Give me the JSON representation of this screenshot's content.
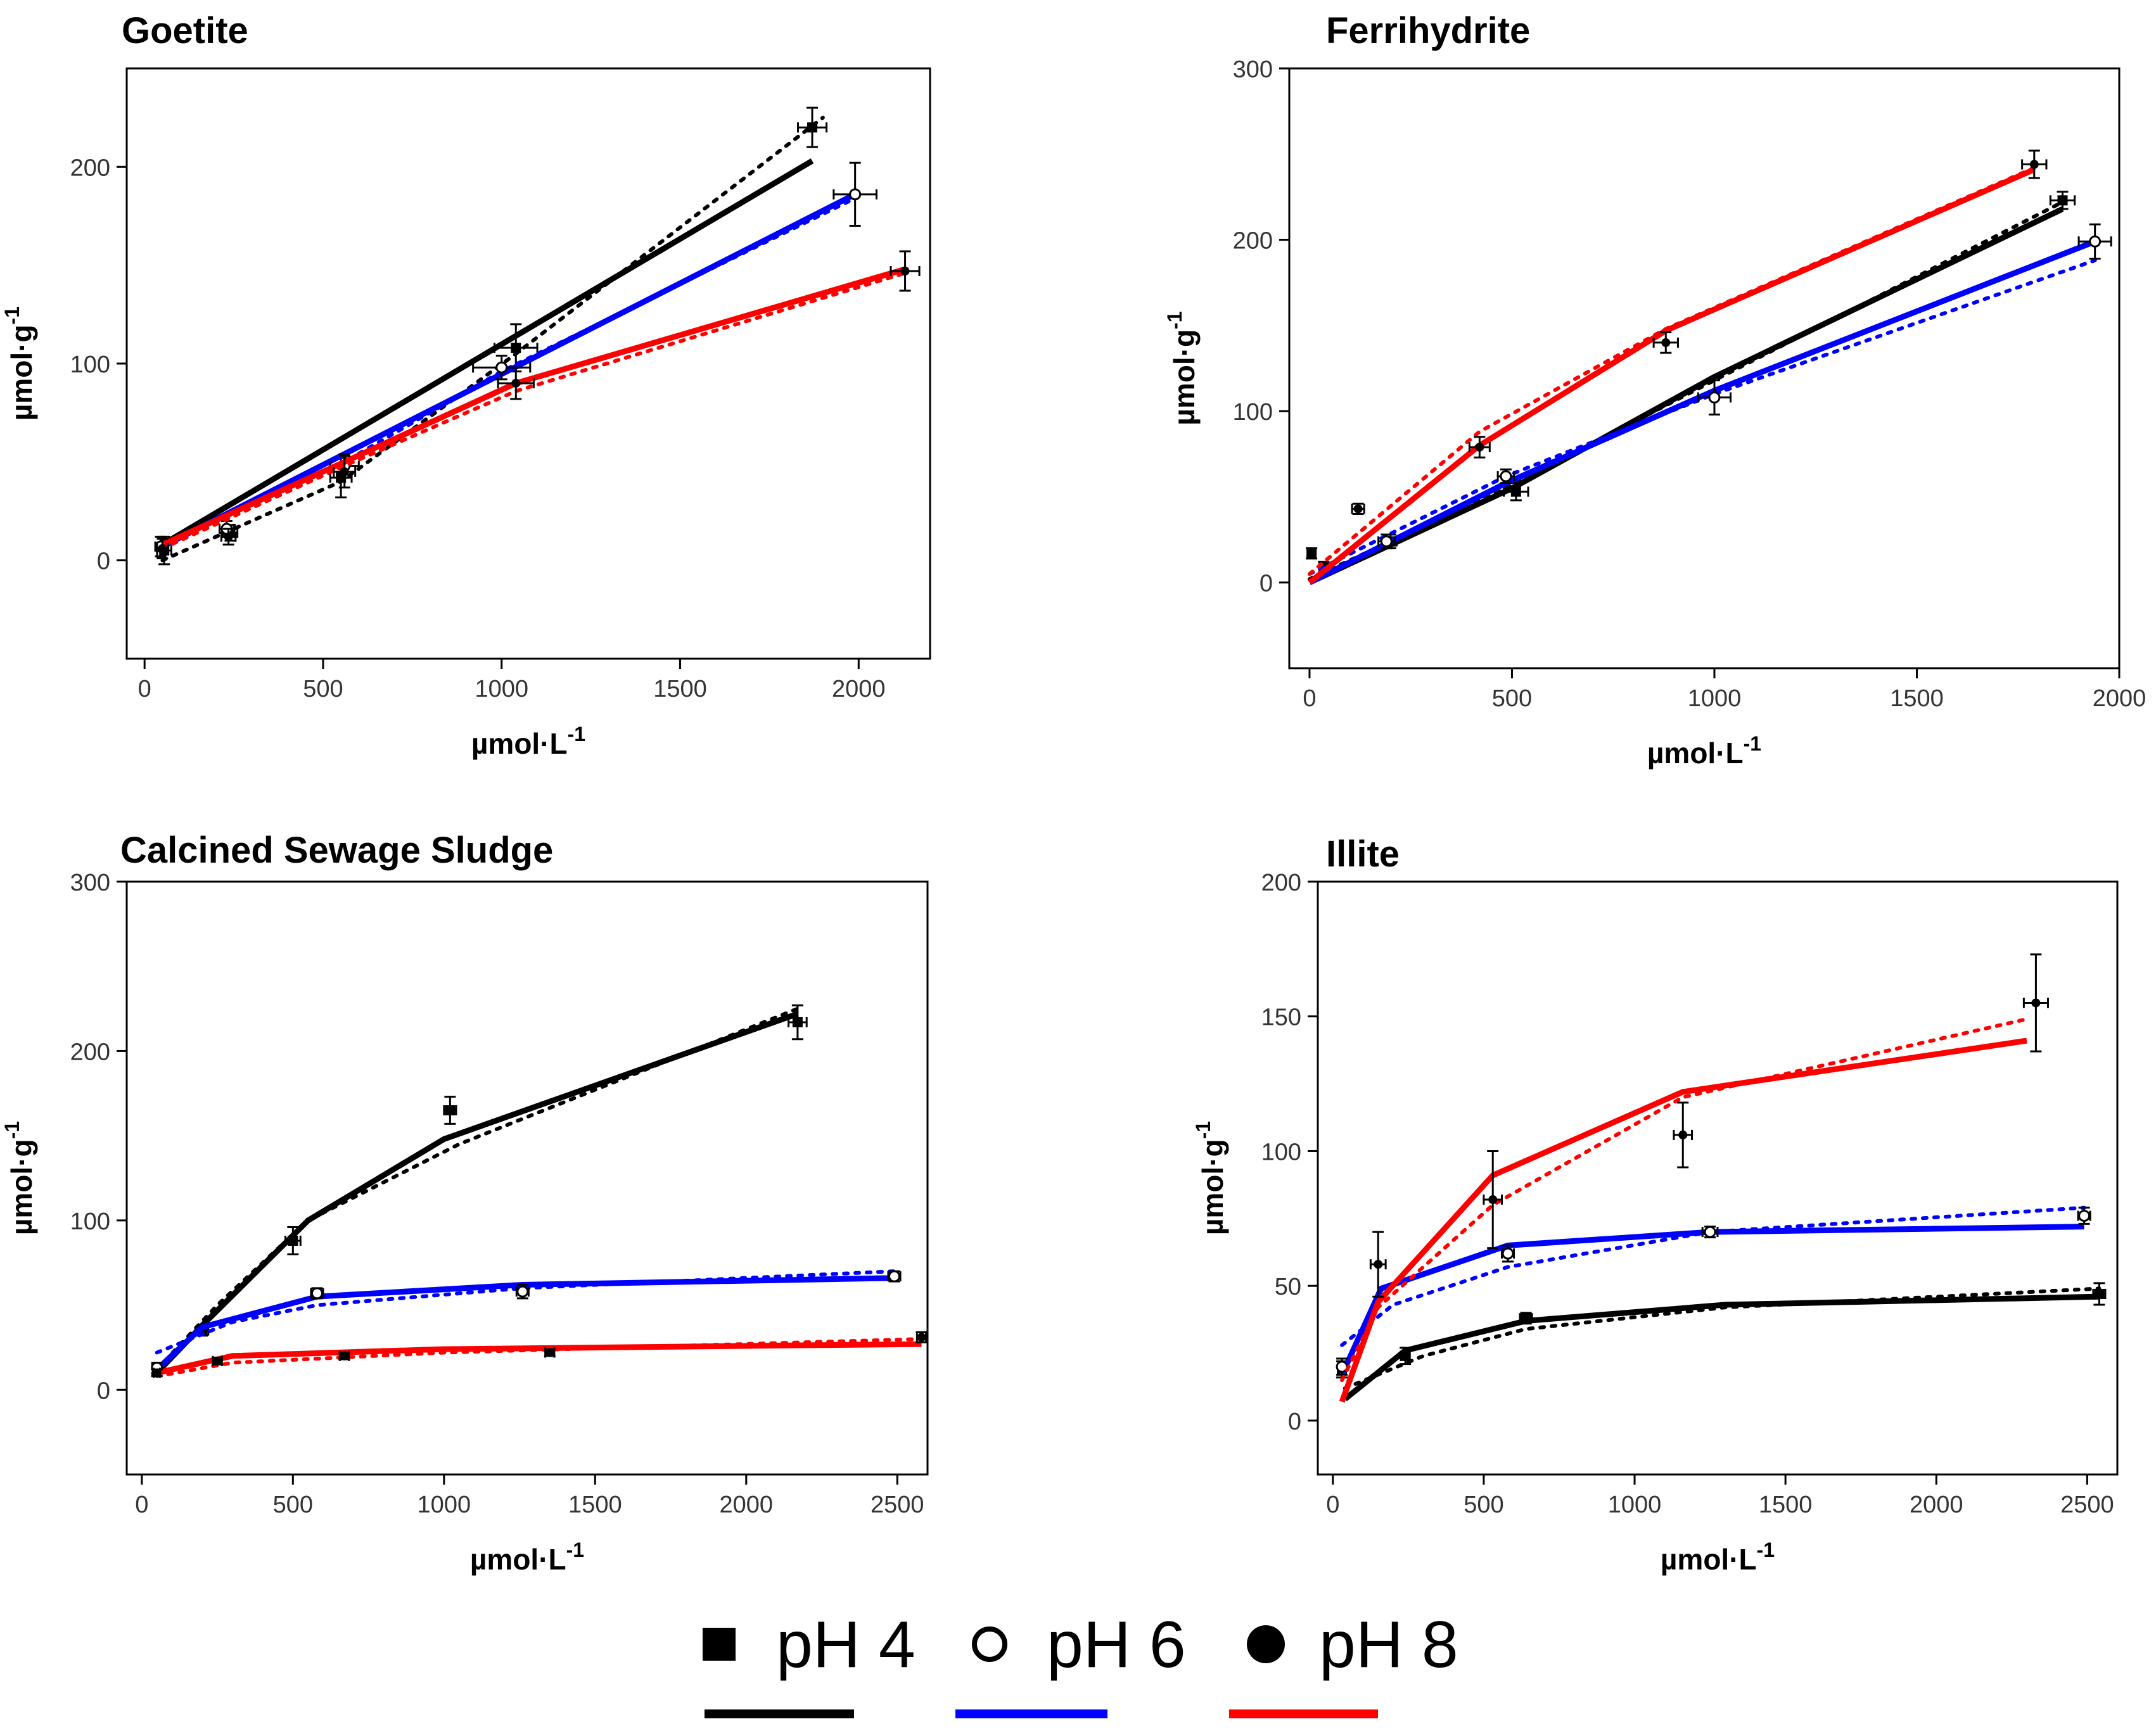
{
  "chart_data": [
    {
      "type": "line",
      "title": "Goetite",
      "xlabel": "µmol·L",
      "xlabel_sup": "-1",
      "ylabel": "µmol·g",
      "ylabel_sup": "-1",
      "xlim": [
        -50,
        2200
      ],
      "ylim": [
        -50,
        250
      ],
      "xticks": [
        0,
        500,
        1000,
        1500,
        2000
      ],
      "yticks": [
        0,
        100,
        200
      ],
      "series": [
        {
          "name": "pH 4",
          "color": "#000000",
          "marker": "square",
          "points": [
            {
              "x": 55,
              "y": 5,
              "ex": 20,
              "ey": 7
            },
            {
              "x": 240,
              "y": 14,
              "ex": 20,
              "ey": 4
            },
            {
              "x": 550,
              "y": 42,
              "ex": 30,
              "ey": 10
            },
            {
              "x": 1040,
              "y": 108,
              "ex": 60,
              "ey": 12
            },
            {
              "x": 1870,
              "y": 220,
              "ex": 40,
              "ey": 10
            }
          ],
          "fit": [
            {
              "x": 50,
              "y": 8
            },
            {
              "x": 1870,
              "y": 203
            }
          ],
          "fit2": [
            {
              "x": 50,
              "y": 0
            },
            {
              "x": 550,
              "y": 40
            },
            {
              "x": 1040,
              "y": 105
            },
            {
              "x": 1900,
              "y": 225
            }
          ]
        },
        {
          "name": "pH 6",
          "color": "#0000ff",
          "marker": "open-circle",
          "points": [
            {
              "x": 45,
              "y": 7,
              "ex": 15,
              "ey": 5
            },
            {
              "x": 230,
              "y": 16,
              "ex": 20,
              "ey": 4
            },
            {
              "x": 560,
              "y": 48,
              "ex": 40,
              "ey": 6
            },
            {
              "x": 1000,
              "y": 98,
              "ex": 80,
              "ey": 6
            },
            {
              "x": 1990,
              "y": 186,
              "ex": 60,
              "ey": 16
            }
          ],
          "fit": [
            {
              "x": 50,
              "y": 7
            },
            {
              "x": 1990,
              "y": 186
            }
          ],
          "fit2": [
            {
              "x": 50,
              "y": 8
            },
            {
              "x": 560,
              "y": 50
            },
            {
              "x": 1000,
              "y": 96
            },
            {
              "x": 1990,
              "y": 184
            }
          ]
        },
        {
          "name": "pH 8",
          "color": "#ff0000",
          "marker": "filled-circle",
          "points": [
            {
              "x": 50,
              "y": 6,
              "ex": 15,
              "ey": 5
            },
            {
              "x": 235,
              "y": 12,
              "ex": 20,
              "ey": 4
            },
            {
              "x": 560,
              "y": 45,
              "ex": 30,
              "ey": 8
            },
            {
              "x": 1040,
              "y": 90,
              "ex": 50,
              "ey": 8
            },
            {
              "x": 2130,
              "y": 147,
              "ex": 40,
              "ey": 10
            }
          ],
          "fit": [
            {
              "x": 50,
              "y": 8
            },
            {
              "x": 560,
              "y": 50
            },
            {
              "x": 1040,
              "y": 90
            },
            {
              "x": 2130,
              "y": 148
            }
          ],
          "fit2": [
            {
              "x": 50,
              "y": 6
            },
            {
              "x": 560,
              "y": 48
            },
            {
              "x": 1040,
              "y": 86
            },
            {
              "x": 2130,
              "y": 146
            }
          ]
        }
      ]
    },
    {
      "type": "line",
      "title": "Ferrihydrite",
      "xlabel": "µmol·L",
      "xlabel_sup": "-1",
      "ylabel": "µmol·g",
      "ylabel_sup": "-1",
      "xlim": [
        -50,
        2000
      ],
      "ylim": [
        -50,
        300
      ],
      "xticks": [
        0,
        500,
        1000,
        1500,
        2000
      ],
      "yticks": [
        0,
        100,
        200,
        300
      ],
      "series": [
        {
          "name": "pH 4",
          "color": "#000000",
          "marker": "square",
          "points": [
            {
              "x": 5,
              "y": 17,
              "ex": 10,
              "ey": 3
            },
            {
              "x": 35,
              "y": 9,
              "ex": 10,
              "ey": 3
            },
            {
              "x": 200,
              "y": 24,
              "ex": 15,
              "ey": 4
            },
            {
              "x": 510,
              "y": 53,
              "ex": 30,
              "ey": 5
            },
            {
              "x": 1860,
              "y": 223,
              "ex": 30,
              "ey": 5
            }
          ],
          "fit": [
            {
              "x": 0,
              "y": 0
            },
            {
              "x": 500,
              "y": 55
            },
            {
              "x": 1000,
              "y": 120
            },
            {
              "x": 1860,
              "y": 218
            }
          ],
          "fit2": [
            {
              "x": 0,
              "y": 2
            },
            {
              "x": 500,
              "y": 57
            },
            {
              "x": 1000,
              "y": 118
            },
            {
              "x": 1860,
              "y": 222
            }
          ]
        },
        {
          "name": "pH 6",
          "color": "#0000ff",
          "marker": "open-circle",
          "points": [
            {
              "x": 190,
              "y": 24,
              "ex": 20,
              "ey": 4
            },
            {
              "x": 485,
              "y": 62,
              "ex": 20,
              "ey": 4
            },
            {
              "x": 1000,
              "y": 108,
              "ex": 40,
              "ey": 10
            },
            {
              "x": 1940,
              "y": 199,
              "ex": 40,
              "ey": 10
            }
          ],
          "fit": [
            {
              "x": 0,
              "y": 0
            },
            {
              "x": 485,
              "y": 58
            },
            {
              "x": 1000,
              "y": 112
            },
            {
              "x": 1940,
              "y": 199
            }
          ],
          "fit2": [
            {
              "x": 0,
              "y": 5
            },
            {
              "x": 485,
              "y": 62
            },
            {
              "x": 1000,
              "y": 110
            },
            {
              "x": 1940,
              "y": 188
            }
          ]
        },
        {
          "name": "pH 8",
          "color": "#ff0000",
          "marker": "filled-circle",
          "points": [
            {
              "x": 120,
              "y": 43,
              "ex": 15,
              "ey": 3
            },
            {
              "x": 420,
              "y": 79,
              "ex": 25,
              "ey": 6
            },
            {
              "x": 880,
              "y": 140,
              "ex": 30,
              "ey": 6
            },
            {
              "x": 1790,
              "y": 244,
              "ex": 30,
              "ey": 8
            }
          ],
          "fit": [
            {
              "x": 0,
              "y": 0
            },
            {
              "x": 420,
              "y": 80
            },
            {
              "x": 880,
              "y": 147
            },
            {
              "x": 1790,
              "y": 241
            }
          ],
          "fit2": [
            {
              "x": 0,
              "y": 5
            },
            {
              "x": 420,
              "y": 88
            },
            {
              "x": 880,
              "y": 148
            },
            {
              "x": 1790,
              "y": 242
            }
          ]
        }
      ]
    },
    {
      "type": "line",
      "title": "Calcined  Sewage Sludge",
      "xlabel": "µmol·L",
      "xlabel_sup": "-1",
      "ylabel": "µmol·g",
      "ylabel_sup": "-1",
      "xlim": [
        -50,
        2600
      ],
      "ylim": [
        -50,
        300
      ],
      "xticks": [
        0,
        500,
        1000,
        1500,
        2000,
        2500
      ],
      "yticks": [
        0,
        100,
        200,
        300
      ],
      "series": [
        {
          "name": "pH 4",
          "color": "#000000",
          "marker": "square",
          "points": [
            {
              "x": 50,
              "y": 12,
              "ex": 10,
              "ey": 3
            },
            {
              "x": 200,
              "y": 35,
              "ex": 20,
              "ey": 3
            },
            {
              "x": 500,
              "y": 88,
              "ex": 25,
              "ey": 8
            },
            {
              "x": 1020,
              "y": 165,
              "ex": 20,
              "ey": 8
            },
            {
              "x": 2170,
              "y": 217,
              "ex": 30,
              "ey": 10
            }
          ],
          "fit": [
            {
              "x": 50,
              "y": 10
            },
            {
              "x": 200,
              "y": 38
            },
            {
              "x": 550,
              "y": 100
            },
            {
              "x": 1000,
              "y": 148
            },
            {
              "x": 2170,
              "y": 222
            }
          ],
          "fit2": [
            {
              "x": 50,
              "y": 12
            },
            {
              "x": 250,
              "y": 50
            },
            {
              "x": 550,
              "y": 100
            },
            {
              "x": 1050,
              "y": 145
            },
            {
              "x": 2170,
              "y": 225
            }
          ]
        },
        {
          "name": "pH 6",
          "color": "#0000ff",
          "marker": "open-circle",
          "points": [
            {
              "x": 50,
              "y": 13,
              "ex": 10,
              "ey": 3
            },
            {
              "x": 580,
              "y": 57,
              "ex": 20,
              "ey": 3
            },
            {
              "x": 1260,
              "y": 58,
              "ex": 20,
              "ey": 4
            },
            {
              "x": 2490,
              "y": 67,
              "ex": 20,
              "ey": 3
            }
          ],
          "fit": [
            {
              "x": 50,
              "y": 12
            },
            {
              "x": 200,
              "y": 37
            },
            {
              "x": 580,
              "y": 55
            },
            {
              "x": 1260,
              "y": 62
            },
            {
              "x": 2490,
              "y": 66
            }
          ],
          "fit2": [
            {
              "x": 50,
              "y": 22
            },
            {
              "x": 300,
              "y": 40
            },
            {
              "x": 580,
              "y": 50
            },
            {
              "x": 1260,
              "y": 60
            },
            {
              "x": 2490,
              "y": 70
            }
          ]
        },
        {
          "name": "pH 8",
          "color": "#ff0000",
          "marker": "filled-circle",
          "points": [
            {
              "x": 50,
              "y": 10,
              "ex": 10,
              "ey": 2
            },
            {
              "x": 250,
              "y": 17,
              "ex": 15,
              "ey": 2
            },
            {
              "x": 670,
              "y": 20,
              "ex": 15,
              "ey": 2
            },
            {
              "x": 1350,
              "y": 22,
              "ex": 15,
              "ey": 2
            },
            {
              "x": 2580,
              "y": 31,
              "ex": 15,
              "ey": 3
            }
          ],
          "fit": [
            {
              "x": 50,
              "y": 10
            },
            {
              "x": 300,
              "y": 20
            },
            {
              "x": 1000,
              "y": 24
            },
            {
              "x": 2580,
              "y": 27
            }
          ],
          "fit2": [
            {
              "x": 50,
              "y": 8
            },
            {
              "x": 300,
              "y": 16
            },
            {
              "x": 1000,
              "y": 22
            },
            {
              "x": 2580,
              "y": 30
            }
          ]
        }
      ]
    },
    {
      "type": "line",
      "title": "Illite",
      "xlabel": "µmol·L",
      "xlabel_sup": "-1",
      "ylabel": "µmol·g",
      "ylabel_sup": "-1",
      "xlim": [
        -50,
        2600
      ],
      "ylim": [
        -20,
        200
      ],
      "xticks": [
        0,
        500,
        1000,
        1500,
        2000,
        2500
      ],
      "yticks": [
        0,
        50,
        100,
        150,
        200
      ],
      "series": [
        {
          "name": "pH 4",
          "color": "#000000",
          "marker": "square",
          "points": [
            {
              "x": 30,
              "y": 19,
              "ex": 10,
              "ey": 3
            },
            {
              "x": 240,
              "y": 24,
              "ex": 15,
              "ey": 3
            },
            {
              "x": 640,
              "y": 38,
              "ex": 20,
              "ey": 2
            },
            {
              "x": 2540,
              "y": 47,
              "ex": 20,
              "ey": 4
            }
          ],
          "fit": [
            {
              "x": 40,
              "y": 8
            },
            {
              "x": 240,
              "y": 26
            },
            {
              "x": 640,
              "y": 37
            },
            {
              "x": 1300,
              "y": 43
            },
            {
              "x": 2540,
              "y": 46
            }
          ],
          "fit2": [
            {
              "x": 40,
              "y": 12
            },
            {
              "x": 300,
              "y": 24
            },
            {
              "x": 640,
              "y": 34
            },
            {
              "x": 1300,
              "y": 42
            },
            {
              "x": 2540,
              "y": 49
            }
          ]
        },
        {
          "name": "pH 6",
          "color": "#0000ff",
          "marker": "open-circle",
          "points": [
            {
              "x": 30,
              "y": 20,
              "ex": 10,
              "ey": 3
            },
            {
              "x": 580,
              "y": 62,
              "ex": 20,
              "ey": 3
            },
            {
              "x": 1250,
              "y": 70,
              "ex": 25,
              "ey": 2
            },
            {
              "x": 2490,
              "y": 76,
              "ex": 20,
              "ey": 3
            }
          ],
          "fit": [
            {
              "x": 30,
              "y": 17
            },
            {
              "x": 160,
              "y": 49
            },
            {
              "x": 580,
              "y": 65
            },
            {
              "x": 1250,
              "y": 70
            },
            {
              "x": 2490,
              "y": 72
            }
          ],
          "fit2": [
            {
              "x": 30,
              "y": 28
            },
            {
              "x": 200,
              "y": 43
            },
            {
              "x": 580,
              "y": 57
            },
            {
              "x": 1250,
              "y": 70
            },
            {
              "x": 2490,
              "y": 79
            }
          ]
        },
        {
          "name": "pH 8",
          "color": "#ff0000",
          "marker": "filled-circle",
          "points": [
            {
              "x": 150,
              "y": 58,
              "ex": 25,
              "ey": 12
            },
            {
              "x": 530,
              "y": 82,
              "ex": 30,
              "ey": 18
            },
            {
              "x": 1160,
              "y": 106,
              "ex": 30,
              "ey": 12
            },
            {
              "x": 2330,
              "y": 155,
              "ex": 40,
              "ey": 18
            }
          ],
          "fit": [
            {
              "x": 30,
              "y": 7
            },
            {
              "x": 150,
              "y": 44
            },
            {
              "x": 530,
              "y": 91
            },
            {
              "x": 1160,
              "y": 122
            },
            {
              "x": 2300,
              "y": 141
            }
          ],
          "fit2": [
            {
              "x": 30,
              "y": 15
            },
            {
              "x": 150,
              "y": 42
            },
            {
              "x": 530,
              "y": 80
            },
            {
              "x": 1160,
              "y": 120
            },
            {
              "x": 2300,
              "y": 149
            }
          ]
        }
      ]
    }
  ],
  "legend": {
    "entries": [
      {
        "label": "pH 4",
        "marker": "square",
        "color": "#000000"
      },
      {
        "label": "pH 6",
        "marker": "open-circle",
        "color": "#0000ff"
      },
      {
        "label": "pH 8",
        "marker": "filled-circle",
        "color": "#ff0000"
      }
    ]
  }
}
